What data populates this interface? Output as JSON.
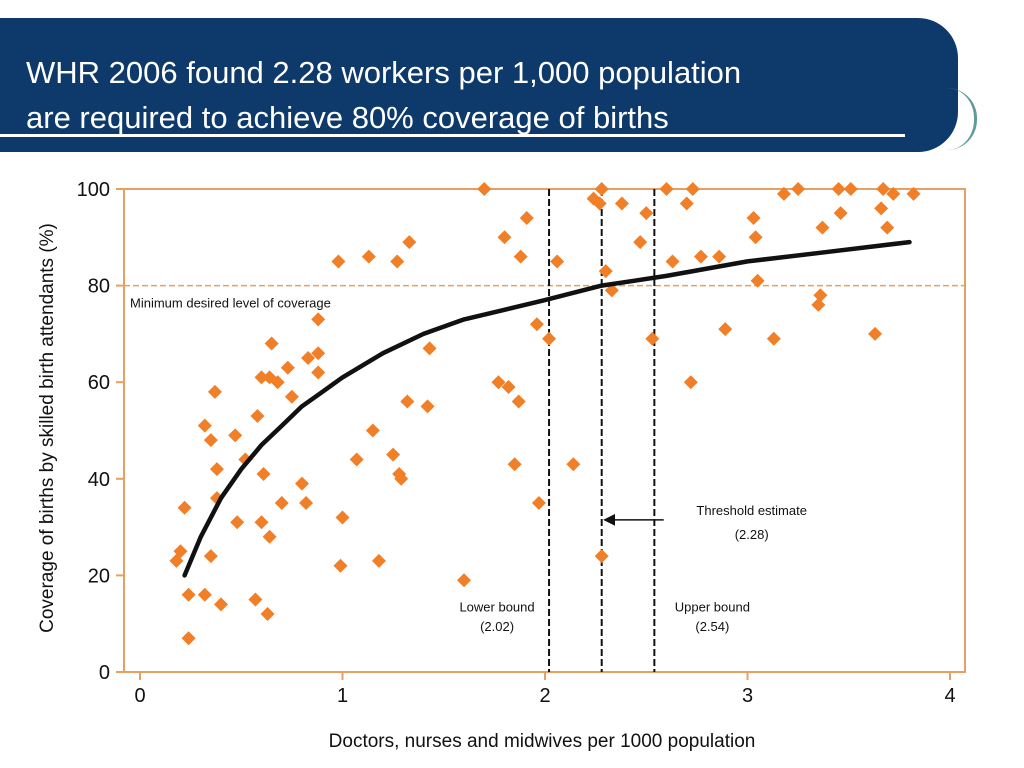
{
  "slide": {
    "title_line1": "WHR 2006 found 2.28 workers per 1,000 population",
    "title_line2": "are required to achieve 80% coverage of births"
  },
  "colors": {
    "banner": "#0d3a6a",
    "accent": "#e8a060",
    "marker": "#f07f28",
    "curve": "#111111"
  },
  "chart_data": {
    "type": "scatter",
    "xlabel": "Doctors, nurses and midwives per 1000 population",
    "ylabel": "Coverage of births by skilled birth attendants (%)",
    "xlim": [
      0,
      4
    ],
    "ylim": [
      0,
      100
    ],
    "x_ticks": [
      0,
      1,
      2,
      3,
      4
    ],
    "y_ticks": [
      0,
      20,
      40,
      60,
      80,
      100
    ],
    "grid": false,
    "reference_line": {
      "y": 80,
      "label": "Minimum desired level of coverage"
    },
    "vertical_lines": [
      {
        "x": 2.02,
        "label": "Lower bound",
        "value_label": "(2.02)"
      },
      {
        "x": 2.28,
        "label": "Threshold estimate",
        "value_label": "(2.28)"
      },
      {
        "x": 2.54,
        "label": "Upper bound",
        "value_label": "(2.54)"
      }
    ],
    "fit_curve": {
      "x": [
        0.22,
        0.3,
        0.4,
        0.5,
        0.6,
        0.7,
        0.8,
        0.9,
        1.0,
        1.2,
        1.4,
        1.6,
        1.8,
        2.0,
        2.28,
        2.6,
        3.0,
        3.4,
        3.8
      ],
      "y": [
        20,
        28,
        36,
        42,
        47,
        51,
        55,
        58,
        61,
        66,
        70,
        73,
        75,
        77,
        80,
        82,
        85,
        87,
        89
      ]
    },
    "points": [
      [
        0.18,
        23
      ],
      [
        0.2,
        25
      ],
      [
        0.22,
        34
      ],
      [
        0.24,
        16
      ],
      [
        0.24,
        7
      ],
      [
        0.32,
        16
      ],
      [
        0.32,
        51
      ],
      [
        0.35,
        48
      ],
      [
        0.35,
        24
      ],
      [
        0.37,
        58
      ],
      [
        0.38,
        42
      ],
      [
        0.38,
        36
      ],
      [
        0.4,
        14
      ],
      [
        0.47,
        49
      ],
      [
        0.48,
        31
      ],
      [
        0.52,
        44
      ],
      [
        0.57,
        15
      ],
      [
        0.58,
        53
      ],
      [
        0.6,
        61
      ],
      [
        0.6,
        31
      ],
      [
        0.61,
        41
      ],
      [
        0.63,
        12
      ],
      [
        0.64,
        28
      ],
      [
        0.64,
        61
      ],
      [
        0.65,
        68
      ],
      [
        0.68,
        60
      ],
      [
        0.7,
        35
      ],
      [
        0.73,
        63
      ],
      [
        0.75,
        57
      ],
      [
        0.8,
        39
      ],
      [
        0.82,
        35
      ],
      [
        0.83,
        65
      ],
      [
        0.88,
        73
      ],
      [
        0.88,
        66
      ],
      [
        0.88,
        62
      ],
      [
        0.98,
        85
      ],
      [
        0.99,
        22
      ],
      [
        1.0,
        32
      ],
      [
        1.07,
        44
      ],
      [
        1.13,
        86
      ],
      [
        1.15,
        50
      ],
      [
        1.18,
        23
      ],
      [
        1.25,
        45
      ],
      [
        1.27,
        85
      ],
      [
        1.28,
        41
      ],
      [
        1.29,
        40
      ],
      [
        1.32,
        56
      ],
      [
        1.33,
        89
      ],
      [
        1.42,
        55
      ],
      [
        1.43,
        67
      ],
      [
        1.6,
        19
      ],
      [
        1.7,
        100
      ],
      [
        1.77,
        60
      ],
      [
        1.8,
        90
      ],
      [
        1.82,
        59
      ],
      [
        1.85,
        43
      ],
      [
        1.87,
        56
      ],
      [
        1.88,
        86
      ],
      [
        1.91,
        94
      ],
      [
        1.96,
        72
      ],
      [
        1.97,
        35
      ],
      [
        2.02,
        69
      ],
      [
        2.06,
        85
      ],
      [
        2.14,
        43
      ],
      [
        2.24,
        98
      ],
      [
        2.27,
        97
      ],
      [
        2.28,
        24
      ],
      [
        2.28,
        100
      ],
      [
        2.3,
        83
      ],
      [
        2.33,
        79
      ],
      [
        2.38,
        97
      ],
      [
        2.47,
        89
      ],
      [
        2.5,
        95
      ],
      [
        2.53,
        69
      ],
      [
        2.6,
        100
      ],
      [
        2.63,
        85
      ],
      [
        2.7,
        97
      ],
      [
        2.72,
        60
      ],
      [
        2.73,
        100
      ],
      [
        2.77,
        86
      ],
      [
        2.86,
        86
      ],
      [
        2.89,
        71
      ],
      [
        3.03,
        94
      ],
      [
        3.04,
        90
      ],
      [
        3.05,
        81
      ],
      [
        3.13,
        69
      ],
      [
        3.18,
        99
      ],
      [
        3.25,
        100
      ],
      [
        3.35,
        76
      ],
      [
        3.36,
        78
      ],
      [
        3.37,
        92
      ],
      [
        3.45,
        100
      ],
      [
        3.46,
        95
      ],
      [
        3.51,
        100
      ],
      [
        3.63,
        70
      ],
      [
        3.66,
        96
      ],
      [
        3.67,
        100
      ],
      [
        3.69,
        92
      ],
      [
        3.72,
        99
      ],
      [
        3.82,
        99
      ]
    ]
  }
}
